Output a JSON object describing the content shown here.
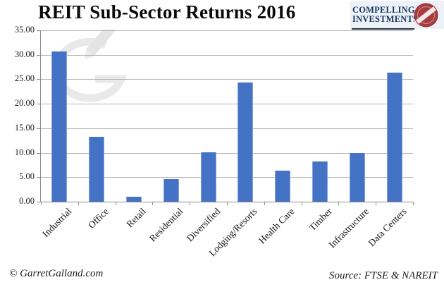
{
  "title": "REIT Sub-Sector Returns 2016",
  "logo": {
    "line1": "COMPELLING",
    "line2": "INVESTMENTS",
    "navy": "#17375E",
    "seal_red": "#A93B3E",
    "background": "#EDF2F8"
  },
  "footer": {
    "left": "© GarretGalland.com",
    "right": "Source: FTSE & NAREIT"
  },
  "chart_data": {
    "type": "bar",
    "title": "REIT Sub-Sector Returns 2016",
    "categories": [
      "Industrial",
      "Office",
      "Retail",
      "Residential",
      "Diversified",
      "Lodging/Resorts",
      "Health Care",
      "Timber",
      "Infrastructure",
      "Data Centers"
    ],
    "values": [
      30.7,
      13.2,
      1.0,
      4.6,
      10.1,
      24.3,
      6.4,
      8.2,
      9.9,
      26.4
    ],
    "xlabel": "",
    "ylabel": "",
    "ylim": [
      0,
      35
    ],
    "ytick_step": 5,
    "ytick_labels": [
      "0.00",
      "5.00",
      "10.00",
      "15.00",
      "20.00",
      "25.00",
      "30.00",
      "35.00"
    ],
    "bar_color": "#4472C4",
    "grid": true,
    "gridline_color": "#b3b3b3",
    "legend": "none",
    "source_note": "Source: FTSE & NAREIT",
    "watermark": "GarretGalland pencil-G logo"
  }
}
